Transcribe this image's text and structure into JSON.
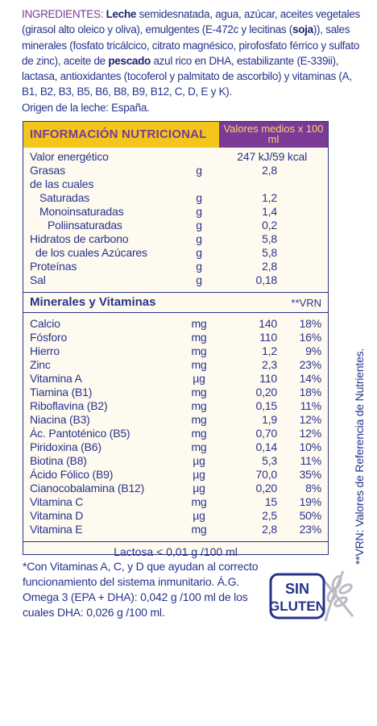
{
  "ingredients": {
    "label": "INGREDIENTES:",
    "parts": [
      "Leche",
      " semidesnatada, agua, azúcar, aceites vegetales (girasol alto oleico y oliva), emulgentes (E-472c y lecitinas (",
      "soja",
      ")), sales minerales (fosfato tricálcico, citrato magnésico, pirofosfato férrico y sulfato de zinc), aceite de ",
      "pescado",
      " azul rico en DHA, estabilizante (E-339ii), lactasa, antioxidantes (tocoferol y palmitato de ascorbilo) y vitaminas (A, B1, B2, B3, B5, B6, B8, B9, B12, C, D, E y K)."
    ],
    "origin": "Origen de la leche: España."
  },
  "nutrition": {
    "title": "INFORMACIÓN NUTRICIONAL",
    "per": "Valores medios x 100 ml",
    "rows": [
      {
        "label": "Valor energético",
        "value": "247 kJ/59 kcal"
      },
      {
        "label": "Grasas",
        "unit": "g",
        "value": "2,8"
      },
      {
        "label": "de las cuales"
      },
      {
        "label": "Saturadas",
        "unit": "g",
        "value": "1,2"
      },
      {
        "label": "Monoinsaturadas",
        "unit": "g",
        "value": "1,4"
      },
      {
        "label": "Poliinsaturadas",
        "unit": "g",
        "value": "0,2"
      },
      {
        "label": "Hidratos de carbono",
        "unit": "g",
        "value": "5,8"
      },
      {
        "label": "de los cuales Azúcares",
        "unit": "g",
        "value": "5,8"
      },
      {
        "label": "Proteínas",
        "unit": "g",
        "value": "2,8"
      },
      {
        "label": "Sal",
        "unit": "g",
        "value": "0,18"
      }
    ]
  },
  "minerals": {
    "title": "Minerales y Vitaminas",
    "vrn_header": "**VRN",
    "rows": [
      [
        "Calcio",
        "mg",
        "140",
        "18%"
      ],
      [
        "Fósforo",
        "mg",
        "110",
        "16%"
      ],
      [
        "Hierro",
        "mg",
        "1,2",
        "9%"
      ],
      [
        "Zinc",
        "mg",
        "2,3",
        "23%"
      ],
      [
        "Vitamina A",
        "µg",
        "110",
        "14%"
      ],
      [
        "Tiamina (B1)",
        "mg",
        "0,20",
        "18%"
      ],
      [
        "Riboflavina (B2)",
        "mg",
        "0,15",
        "11%"
      ],
      [
        "Niacina (B3)",
        "mg",
        "1,9",
        "12%"
      ],
      [
        "Ác. Pantoténico (B5)",
        "mg",
        "0,70",
        "12%"
      ],
      [
        "Piridoxina (B6)",
        "mg",
        "0,14",
        "10%"
      ],
      [
        "Biotina (B8)",
        "µg",
        "5,3",
        "11%"
      ],
      [
        "Ácido Fólico (B9)",
        "µg",
        "70,0",
        "35%"
      ],
      [
        "Cianocobalamina (B12)",
        "µg",
        "0,20",
        "8%"
      ],
      [
        "Vitamina C",
        "mg",
        "15",
        "19%"
      ],
      [
        "Vitamina D",
        "µg",
        "2,5",
        "50%"
      ],
      [
        "Vitamina E",
        "mg",
        "2,8",
        "23%"
      ]
    ]
  },
  "lactose": "Lactosa < 0,01 g /100 ml",
  "vrn_note": "**VRN: Valores de Referencia de Nutrientes.",
  "footnote": "*Con Vitaminas A, C, y D que ayudan al correcto funcionamiento del sistema inmunitario. Á.G. Omega 3 (EPA + DHA): 0,042 g /100 ml de los cuales DHA: 0,026 g /100 ml.",
  "badge": {
    "line1": "SIN",
    "line2": "GLUTEN"
  }
}
